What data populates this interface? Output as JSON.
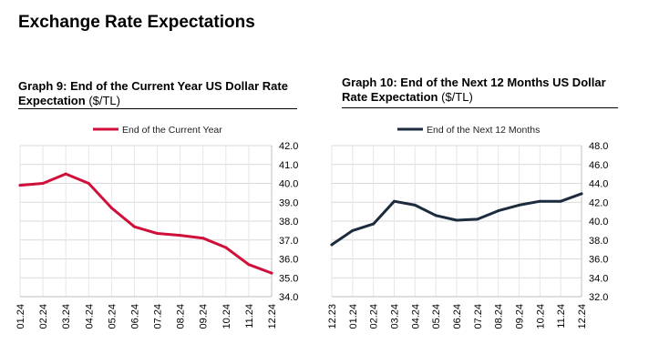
{
  "page_title": "Exchange Rate Expectations",
  "chart_data": [
    {
      "type": "line",
      "title": "Graph 9: End of the Current Year US Dollar Rate Expectation",
      "unit": "($/TL)",
      "categories": [
        "01.24",
        "02.24",
        "03.24",
        "04.24",
        "05.24",
        "06.24",
        "07.24",
        "08.24",
        "09.24",
        "10.24",
        "11.24",
        "12.24"
      ],
      "series": [
        {
          "name": "End of the Current Year",
          "color": "#d0103a",
          "values": [
            39.9,
            40.0,
            40.5,
            40.0,
            38.7,
            37.7,
            37.35,
            37.25,
            37.1,
            36.6,
            35.7,
            35.25
          ]
        }
      ],
      "ylim": [
        34.0,
        42.0
      ],
      "yticks": [
        "34.0",
        "35.0",
        "36.0",
        "37.0",
        "38.0",
        "39.0",
        "40.0",
        "41.0",
        "42.0"
      ],
      "grid": true,
      "legend": "top"
    },
    {
      "type": "line",
      "title": "Graph 10: End of the Next 12 Months US Dollar Rate Expectation",
      "unit": "($/TL)",
      "categories": [
        "12.23",
        "01.24",
        "02.24",
        "03.24",
        "04.24",
        "05.24",
        "06.24",
        "07.24",
        "08.24",
        "09.24",
        "10.24",
        "11.24",
        "12.24"
      ],
      "series": [
        {
          "name": "End of the Next 12 Months",
          "color": "#1c2b3d",
          "values": [
            37.5,
            39.0,
            39.7,
            42.1,
            41.7,
            40.6,
            40.1,
            40.2,
            41.1,
            41.7,
            42.1,
            42.1,
            42.9
          ]
        }
      ],
      "ylim": [
        32.0,
        48.0
      ],
      "yticks": [
        "32.0",
        "34.0",
        "36.0",
        "38.0",
        "40.0",
        "42.0",
        "44.0",
        "46.0",
        "48.0"
      ],
      "grid": true,
      "legend": "top"
    }
  ]
}
